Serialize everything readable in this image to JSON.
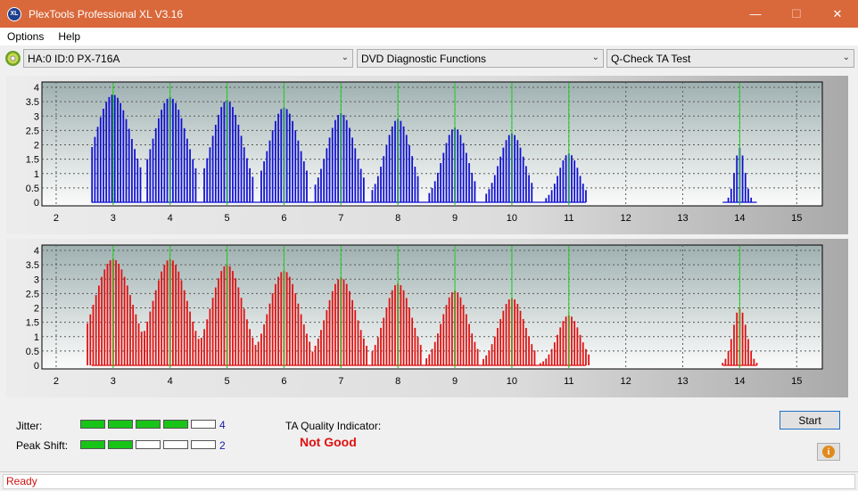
{
  "window": {
    "title": "PlexTools Professional XL V3.16",
    "icon_text": "XL"
  },
  "menu": [
    {
      "label": "Options"
    },
    {
      "label": "Help"
    }
  ],
  "toolbar": {
    "drive": "HA:0 ID:0  PX-716A",
    "function": "DVD Diagnostic Functions",
    "test": "Q-Check TA Test"
  },
  "chart_data": [
    {
      "type": "bar",
      "name": "upper",
      "color": "#1010d0",
      "x_ticks": [
        2,
        3,
        4,
        5,
        6,
        7,
        8,
        9,
        10,
        11,
        12,
        13,
        14,
        15
      ],
      "y_ticks": [
        0,
        0.5,
        1,
        1.5,
        2,
        2.5,
        3,
        3.5,
        4
      ],
      "xlim": [
        1.75,
        15.45
      ],
      "ylim": [
        0,
        4
      ],
      "markers": [
        3,
        4,
        5,
        6,
        7,
        8,
        9,
        10,
        11,
        14
      ],
      "peaks": [
        {
          "center": 3,
          "height": 3.75,
          "width": 0.32,
          "start": 2.63,
          "end": 3.5
        },
        {
          "center": 4,
          "height": 3.65,
          "width": 0.3,
          "start": 3.6,
          "end": 4.45
        },
        {
          "center": 5,
          "height": 3.55,
          "width": 0.27,
          "start": 4.6,
          "end": 5.45
        },
        {
          "center": 6,
          "height": 3.3,
          "width": 0.27,
          "start": 5.6,
          "end": 6.42
        },
        {
          "center": 7,
          "height": 3.1,
          "width": 0.25,
          "start": 6.55,
          "end": 7.4
        },
        {
          "center": 8,
          "height": 2.9,
          "width": 0.23,
          "start": 7.55,
          "end": 8.38
        },
        {
          "center": 9,
          "height": 2.6,
          "width": 0.22,
          "start": 8.55,
          "end": 9.35
        },
        {
          "center": 10,
          "height": 2.4,
          "width": 0.22,
          "start": 9.55,
          "end": 10.35
        },
        {
          "center": 11,
          "height": 1.7,
          "width": 0.18,
          "start": 10.6,
          "end": 11.3
        },
        {
          "center": 14,
          "height": 1.9,
          "width": 0.09,
          "start": 13.8,
          "end": 14.2
        }
      ]
    },
    {
      "type": "bar",
      "name": "lower",
      "color": "#e01010",
      "x_ticks": [
        2,
        3,
        4,
        5,
        6,
        7,
        8,
        9,
        10,
        11,
        12,
        13,
        14,
        15
      ],
      "y_ticks": [
        0,
        0.5,
        1,
        1.5,
        2,
        2.5,
        3,
        3.5,
        4
      ],
      "xlim": [
        1.75,
        15.45
      ],
      "ylim": [
        0,
        4
      ],
      "markers": [
        3,
        4,
        5,
        6,
        7,
        8,
        9,
        10,
        11,
        14
      ],
      "peaks": [
        {
          "center": 3,
          "height": 3.7,
          "width": 0.33,
          "start": 2.55,
          "end": 3.55
        },
        {
          "center": 4,
          "height": 3.7,
          "width": 0.3,
          "start": 3.55,
          "end": 4.5
        },
        {
          "center": 5,
          "height": 3.5,
          "width": 0.28,
          "start": 4.55,
          "end": 5.5
        },
        {
          "center": 6,
          "height": 3.3,
          "width": 0.27,
          "start": 5.55,
          "end": 6.45
        },
        {
          "center": 7,
          "height": 3.05,
          "width": 0.26,
          "start": 6.5,
          "end": 7.45
        },
        {
          "center": 8,
          "height": 2.85,
          "width": 0.24,
          "start": 7.55,
          "end": 8.4
        },
        {
          "center": 9,
          "height": 2.6,
          "width": 0.23,
          "start": 8.5,
          "end": 9.4
        },
        {
          "center": 10,
          "height": 2.35,
          "width": 0.23,
          "start": 9.5,
          "end": 10.4
        },
        {
          "center": 11,
          "height": 1.75,
          "width": 0.2,
          "start": 10.5,
          "end": 11.35
        },
        {
          "center": 14,
          "height": 2.0,
          "width": 0.12,
          "start": 13.7,
          "end": 14.3
        }
      ]
    }
  ],
  "jitter": {
    "label": "Jitter:",
    "level": 4,
    "max": 5,
    "value": "4"
  },
  "peak_shift": {
    "label": "Peak Shift:",
    "level": 2,
    "max": 5,
    "value": "2"
  },
  "quality": {
    "label": "TA Quality Indicator:",
    "value": "Not Good"
  },
  "buttons": {
    "start": "Start"
  },
  "status": {
    "text": "Ready"
  }
}
